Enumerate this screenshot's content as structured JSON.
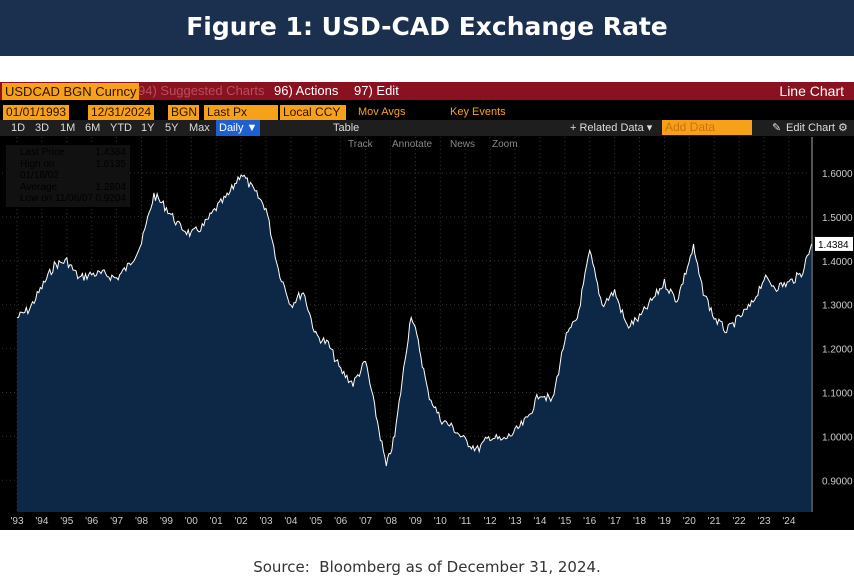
{
  "header": {
    "title": "Figure 1: USD-CAD Exchange Rate"
  },
  "toolbar": {
    "ticker": "USDCAD BGN Curncy",
    "suggested": "94) Suggested Charts",
    "actions": "96) Actions",
    "edit": "97) Edit",
    "chart_type": "Line Chart",
    "start_date": "01/01/1993",
    "end_date": "12/31/2024",
    "source": "BGN",
    "field": "Last Px",
    "currency": "Local CCY",
    "mov_avgs": "Mov Avgs",
    "key_events": "Key Events",
    "periods": [
      "1D",
      "3D",
      "1M",
      "6M",
      "YTD",
      "1Y",
      "5Y",
      "Max"
    ],
    "frequency": "Daily ▼",
    "table": "Table",
    "related_data": "+ Related Data ▾",
    "add_data_placeholder": "Add Data",
    "edit_chart": "Edit Chart",
    "tools": [
      "Track",
      "Annotate",
      "News",
      "Zoom"
    ]
  },
  "legend": {
    "items": [
      [
        "Last Price",
        "1.4384"
      ],
      [
        "High on 01/18/02",
        "1.6135"
      ],
      [
        "Average",
        "1.2804"
      ],
      [
        "Low on 11/06/07",
        "0.9204"
      ]
    ]
  },
  "colors": {
    "header": "#1b2f4e",
    "line": "#ffffff",
    "fill": "#0d2746",
    "toolbar_red": "#8a1220",
    "orange": "#f7a11a"
  },
  "chart_data": {
    "type": "area",
    "title": "",
    "xlabel": "",
    "ylabel": "",
    "ylim": [
      0.87,
      1.66
    ],
    "grid": true,
    "yticks": [
      "1.6000",
      "1.5000",
      "1.4000",
      "1.3000",
      "1.2000",
      "1.1000",
      "1.0000",
      "0.9000"
    ],
    "xticks": [
      "'93",
      "'94",
      "'95",
      "'96",
      "'97",
      "'98",
      "'99",
      "'00",
      "'01",
      "'02",
      "'03",
      "'04",
      "'05",
      "'06",
      "'07",
      "'08",
      "'09",
      "'10",
      "'11",
      "'12",
      "'13",
      "'14",
      "'15",
      "'16",
      "'17",
      "'18",
      "'19",
      "'20",
      "'21",
      "'22",
      "'23",
      "'24"
    ],
    "last_label": "1.4384",
    "x": [
      "1993-01",
      "1993-07",
      "1994-01",
      "1994-07",
      "1995-01",
      "1995-07",
      "1996-01",
      "1996-07",
      "1997-01",
      "1997-07",
      "1998-01",
      "1998-07",
      "1999-01",
      "1999-07",
      "2000-01",
      "2000-07",
      "2001-01",
      "2001-07",
      "2002-01",
      "2002-07",
      "2003-01",
      "2003-07",
      "2004-01",
      "2004-07",
      "2005-01",
      "2005-07",
      "2006-01",
      "2006-07",
      "2007-01",
      "2007-11",
      "2008-03",
      "2008-11",
      "2009-03",
      "2009-07",
      "2010-01",
      "2010-07",
      "2011-01",
      "2011-07",
      "2012-01",
      "2012-07",
      "2013-01",
      "2013-07",
      "2014-01",
      "2014-07",
      "2015-01",
      "2015-07",
      "2016-01",
      "2016-07",
      "2017-01",
      "2017-07",
      "2018-01",
      "2018-07",
      "2019-01",
      "2019-07",
      "2020-03",
      "2020-07",
      "2021-01",
      "2021-07",
      "2022-01",
      "2022-07",
      "2023-01",
      "2023-07",
      "2024-01",
      "2024-07",
      "2024-12"
    ],
    "values": [
      1.27,
      1.29,
      1.34,
      1.39,
      1.4,
      1.36,
      1.37,
      1.37,
      1.36,
      1.39,
      1.44,
      1.55,
      1.52,
      1.48,
      1.46,
      1.48,
      1.52,
      1.55,
      1.6,
      1.56,
      1.52,
      1.38,
      1.3,
      1.33,
      1.23,
      1.21,
      1.15,
      1.12,
      1.17,
      0.93,
      1.0,
      1.28,
      1.2,
      1.1,
      1.04,
      1.02,
      0.99,
      0.97,
      1.0,
      0.99,
      1.01,
      1.04,
      1.1,
      1.08,
      1.22,
      1.27,
      1.42,
      1.3,
      1.33,
      1.25,
      1.27,
      1.31,
      1.35,
      1.31,
      1.43,
      1.34,
      1.27,
      1.24,
      1.27,
      1.3,
      1.36,
      1.34,
      1.35,
      1.37,
      1.4384
    ]
  }
}
